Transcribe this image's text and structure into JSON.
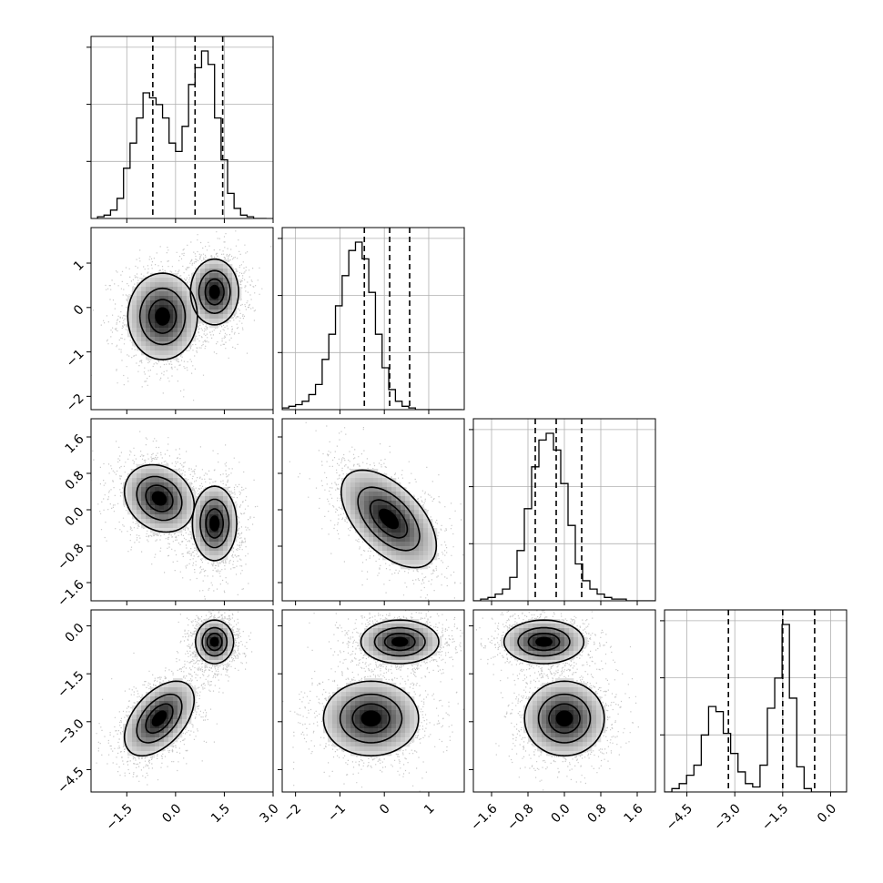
{
  "chart_data": {
    "type": "corner",
    "parameters": [
      {
        "range": [
          -2.6,
          3.0
        ],
        "ticks": [
          "-1.5",
          "0.0",
          "1.5",
          "3.0"
        ],
        "tick_values": [
          -1.5,
          0.0,
          1.5,
          3.0
        ],
        "quantiles": [
          -0.7,
          0.6,
          1.45
        ]
      },
      {
        "range": [
          -2.3,
          1.8
        ],
        "ticks": [
          "-2",
          "-1",
          "0",
          "1"
        ],
        "tick_values": [
          -2,
          -1,
          0,
          1
        ],
        "quantiles": [
          -0.45,
          0.12,
          0.57
        ]
      },
      {
        "range": [
          -2.0,
          2.0
        ],
        "ticks": [
          "-1.6",
          "-0.8",
          "0.0",
          "0.8",
          "1.6"
        ],
        "tick_values": [
          -1.6,
          -0.8,
          0.0,
          0.8,
          1.6
        ],
        "quantiles": [
          -0.64,
          -0.18,
          0.38
        ]
      },
      {
        "range": [
          -5.2,
          0.5
        ],
        "ticks": [
          "-4.5",
          "-3.0",
          "-1.5",
          "0.0"
        ],
        "tick_values": [
          -4.5,
          -3.0,
          -1.5,
          0.0
        ],
        "quantiles": [
          -3.2,
          -1.5,
          -0.5
        ]
      }
    ],
    "histograms": [
      {
        "param": 0,
        "bins_start": -2.4,
        "bin_width": 0.2,
        "counts": [
          1,
          2,
          5,
          12,
          30,
          45,
          60,
          75,
          72,
          68,
          60,
          45,
          40,
          55,
          80,
          90,
          100,
          92,
          60,
          35,
          15,
          6,
          2,
          1,
          0,
          0
        ],
        "ylim": [
          0,
          100
        ]
      },
      {
        "param": 1,
        "bins_start": -2.3,
        "bin_width": 0.15,
        "counts": [
          1,
          2,
          3,
          5,
          9,
          15,
          30,
          45,
          62,
          80,
          95,
          100,
          90,
          70,
          45,
          25,
          12,
          5,
          2,
          1,
          0,
          0,
          0,
          0,
          0,
          0,
          0
        ],
        "ylim": [
          0,
          100
        ]
      },
      {
        "param": 2,
        "bins_start": -2.0,
        "bin_width": 0.16,
        "counts": [
          0,
          1,
          2,
          4,
          7,
          14,
          30,
          55,
          80,
          96,
          100,
          90,
          70,
          45,
          22,
          12,
          7,
          4,
          2,
          1,
          1,
          0,
          0,
          0,
          0
        ],
        "ylim": [
          0,
          100
        ]
      },
      {
        "param": 3,
        "bins_start": -5.2,
        "bin_width": 0.23,
        "counts": [
          0,
          2,
          5,
          10,
          16,
          34,
          51,
          48,
          35,
          23,
          12,
          5,
          3,
          16,
          50,
          68,
          100,
          56,
          15,
          2,
          0,
          0,
          0,
          0,
          0
        ],
        "ylim": [
          0,
          100
        ]
      }
    ],
    "pairs": [
      {
        "row": 1,
        "col": 0,
        "blobs": [
          {
            "x": -0.4,
            "y": -0.2,
            "sx": 0.55,
            "sy": 0.5,
            "rho": 0.0,
            "w": 1.0
          },
          {
            "x": 1.2,
            "y": 0.35,
            "sx": 0.38,
            "sy": 0.38,
            "rho": 0.0,
            "w": 1.0
          }
        ]
      },
      {
        "row": 2,
        "col": 0,
        "blobs": [
          {
            "x": -0.5,
            "y": 0.25,
            "sx": 0.55,
            "sy": 0.38,
            "rho": -0.2,
            "w": 1.0
          },
          {
            "x": 1.2,
            "y": -0.3,
            "sx": 0.35,
            "sy": 0.42,
            "rho": 0.0,
            "w": 1.0
          }
        ]
      },
      {
        "row": 2,
        "col": 1,
        "blobs": [
          {
            "x": 0.1,
            "y": -0.2,
            "sx": 0.55,
            "sy": 0.55,
            "rho": -0.55,
            "w": 1.0
          }
        ]
      },
      {
        "row": 3,
        "col": 0,
        "blobs": [
          {
            "x": -0.5,
            "y": -2.9,
            "sx": 0.55,
            "sy": 0.6,
            "rho": 0.5,
            "w": 1.0
          },
          {
            "x": 1.2,
            "y": -0.5,
            "sx": 0.3,
            "sy": 0.35,
            "rho": 0.0,
            "w": 1.0
          }
        ]
      },
      {
        "row": 3,
        "col": 1,
        "blobs": [
          {
            "x": -0.3,
            "y": -2.9,
            "sx": 0.55,
            "sy": 0.6,
            "rho": 0.0,
            "w": 1.0
          },
          {
            "x": 0.35,
            "y": -0.5,
            "sx": 0.45,
            "sy": 0.35,
            "rho": 0.0,
            "w": 1.0
          }
        ]
      },
      {
        "row": 3,
        "col": 2,
        "blobs": [
          {
            "x": -0.45,
            "y": -0.5,
            "sx": 0.45,
            "sy": 0.35,
            "rho": 0.0,
            "w": 1.0
          },
          {
            "x": 0.0,
            "y": -2.9,
            "sx": 0.45,
            "sy": 0.6,
            "rho": 0.0,
            "w": 1.0
          }
        ]
      }
    ]
  }
}
